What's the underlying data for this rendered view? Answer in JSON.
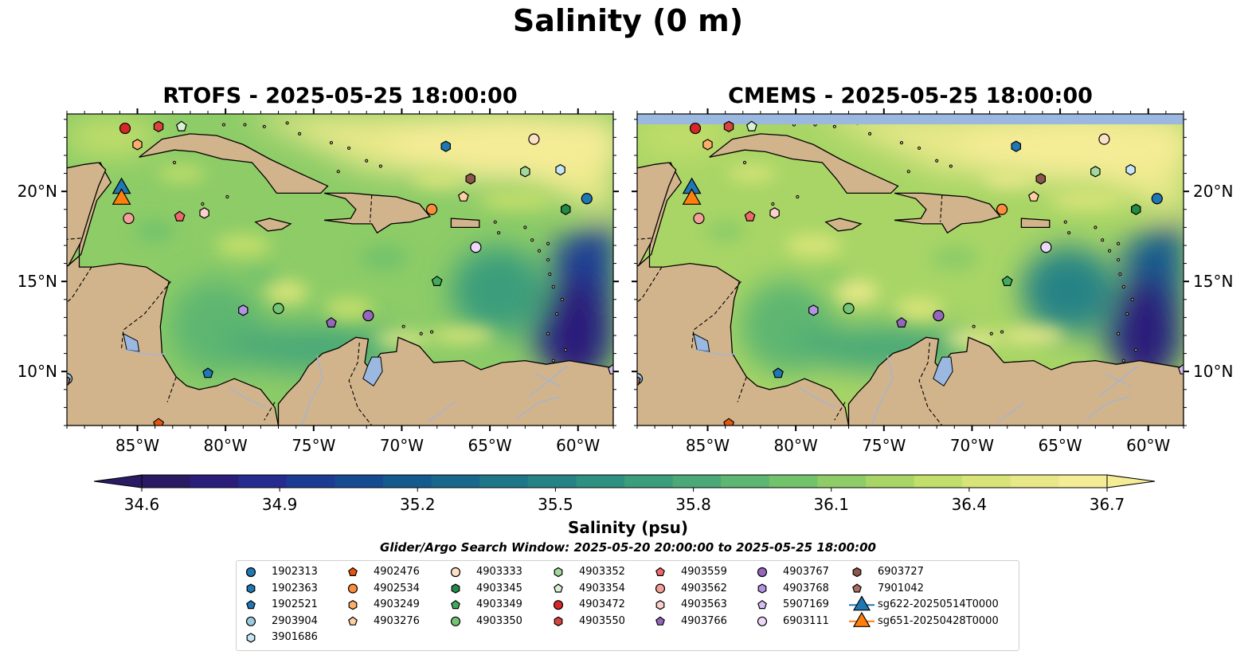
{
  "suptitle": "Salinity (0 m)",
  "panels": [
    {
      "title": "RTOFS - 2025-05-25 18:00:00",
      "model": "RTOFS"
    },
    {
      "title": "CMEMS - 2025-05-25 18:00:00",
      "model": "CMEMS"
    }
  ],
  "map": {
    "lon_range": [
      -89.0,
      -58.0
    ],
    "lat_range": [
      7.0,
      24.3
    ],
    "lon_ticks": [
      -85,
      -80,
      -75,
      -70,
      -65,
      -60
    ],
    "lon_tick_labels": [
      "85°W",
      "80°W",
      "75°W",
      "70°W",
      "65°W",
      "60°W"
    ],
    "lat_ticks": [
      10,
      15,
      20
    ],
    "lat_tick_labels": [
      "10°N",
      "15°N",
      "20°N"
    ],
    "colors": {
      "land": "#d2b48c",
      "lake": "#9ab8e0",
      "coastline": "#000000",
      "border": "#000000",
      "river": "#a6b4cc",
      "cmems_nodata_strip": "#9ab8e0"
    }
  },
  "colorbar": {
    "label": "Salinity (psu)",
    "min": 34.6,
    "max": 36.7,
    "ticks": [
      "34.6",
      "34.9",
      "35.2",
      "35.5",
      "35.8",
      "36.1",
      "36.4",
      "36.7"
    ],
    "extend": "both",
    "colormap": "haline",
    "colors": [
      "#2a1a63",
      "#2b1d7a",
      "#252b8f",
      "#1c3c94",
      "#164b92",
      "#135a8e",
      "#17688c",
      "#1e7689",
      "#268385",
      "#2e9080",
      "#3a9d7c",
      "#4aa977",
      "#5db671",
      "#73c26c",
      "#8dcc67",
      "#a8d566",
      "#c2de6b",
      "#d8e478",
      "#e8e889",
      "#f5ec96"
    ]
  },
  "search_window": "Glider/Argo Search Window: 2025-05-20 20:00:00 to 2025-05-25 18:00:00",
  "legend": {
    "columns": [
      [
        {
          "label": "1902313",
          "marker": "circle",
          "color": "#1f77b4"
        },
        {
          "label": "1902363",
          "marker": "hexagon",
          "color": "#1f77b4"
        },
        {
          "label": "1902521",
          "marker": "pentagon",
          "color": "#1f77b4"
        },
        {
          "label": "2903904",
          "marker": "circle",
          "color": "#9ecae1"
        },
        {
          "label": "3901686",
          "marker": "hexagon",
          "color": "#c6e5f7"
        }
      ],
      [
        {
          "label": "4902476",
          "marker": "pentagon",
          "color": "#e6550d"
        },
        {
          "label": "4902534",
          "marker": "circle",
          "color": "#fd8d3c"
        },
        {
          "label": "4903249",
          "marker": "hexagon",
          "color": "#fdae6b"
        },
        {
          "label": "4903276",
          "marker": "pentagon",
          "color": "#fdd0a2"
        }
      ],
      [
        {
          "label": "4903333",
          "marker": "circle",
          "color": "#fde0c8"
        },
        {
          "label": "4903345",
          "marker": "hexagon",
          "color": "#238b45"
        },
        {
          "label": "4903349",
          "marker": "pentagon",
          "color": "#41ab5d"
        },
        {
          "label": "4903350",
          "marker": "circle",
          "color": "#74c476"
        }
      ],
      [
        {
          "label": "4903352",
          "marker": "hexagon",
          "color": "#a1d99b"
        },
        {
          "label": "4903354",
          "marker": "pentagon",
          "color": "#d9f0d3"
        },
        {
          "label": "4903472",
          "marker": "circle",
          "color": "#d62728"
        },
        {
          "label": "4903550",
          "marker": "hexagon",
          "color": "#d6453d"
        }
      ],
      [
        {
          "label": "4903559",
          "marker": "pentagon",
          "color": "#f0686a"
        },
        {
          "label": "4903562",
          "marker": "circle",
          "color": "#f4a09a"
        },
        {
          "label": "4903563",
          "marker": "hexagon",
          "color": "#fcd0cc"
        },
        {
          "label": "4903766",
          "marker": "pentagon",
          "color": "#9467bd"
        }
      ],
      [
        {
          "label": "4903767",
          "marker": "circle",
          "color": "#9467bd"
        },
        {
          "label": "4903768",
          "marker": "hexagon",
          "color": "#b294e0"
        },
        {
          "label": "5907169",
          "marker": "pentagon",
          "color": "#d4bff0"
        },
        {
          "label": "6903111",
          "marker": "circle",
          "color": "#ecd9fa"
        }
      ],
      [
        {
          "label": "6903727",
          "marker": "hexagon",
          "color": "#8c564b"
        },
        {
          "label": "7901042",
          "marker": "pentagon",
          "color": "#a87062"
        },
        {
          "label": "sg622-20250514T0000",
          "marker": "triangle",
          "color": "#1f77b4"
        },
        {
          "label": "sg651-20250428T0000",
          "marker": "triangle",
          "color": "#ff7f0e"
        }
      ]
    ]
  },
  "floats": [
    {
      "id": "1902313",
      "lon": -59.5,
      "lat": 19.6
    },
    {
      "id": "1902363",
      "lon": -67.5,
      "lat": 22.5
    },
    {
      "id": "1902521",
      "lon": -81.0,
      "lat": 9.9
    },
    {
      "id": "2903904",
      "lon": -89.0,
      "lat": 9.6
    },
    {
      "id": "3901686",
      "lon": -61.0,
      "lat": 21.2
    },
    {
      "id": "4902476",
      "lon": -83.8,
      "lat": 7.1
    },
    {
      "id": "4902534",
      "lon": -68.3,
      "lat": 19.0
    },
    {
      "id": "4903249",
      "lon": -85.0,
      "lat": 22.6
    },
    {
      "id": "4903276",
      "lon": -66.5,
      "lat": 19.7
    },
    {
      "id": "4903333",
      "lon": -62.5,
      "lat": 22.9
    },
    {
      "id": "4903345",
      "lon": -60.7,
      "lat": 19.0
    },
    {
      "id": "4903349",
      "lon": -68.0,
      "lat": 15.0
    },
    {
      "id": "4903350",
      "lon": -77.0,
      "lat": 13.5
    },
    {
      "id": "4903352",
      "lon": -63.0,
      "lat": 21.1
    },
    {
      "id": "4903354",
      "lon": -82.5,
      "lat": 23.6
    },
    {
      "id": "4903472",
      "lon": -85.7,
      "lat": 23.5
    },
    {
      "id": "4903550",
      "lon": -83.8,
      "lat": 23.6
    },
    {
      "id": "4903559",
      "lon": -82.6,
      "lat": 18.6
    },
    {
      "id": "4903562",
      "lon": -85.5,
      "lat": 18.5
    },
    {
      "id": "4903563",
      "lon": -81.2,
      "lat": 18.8
    },
    {
      "id": "4903766",
      "lon": -74.0,
      "lat": 12.7
    },
    {
      "id": "4903767",
      "lon": -71.9,
      "lat": 13.1
    },
    {
      "id": "4903768",
      "lon": -79.0,
      "lat": 13.4
    },
    {
      "id": "5907169",
      "lon": -58.0,
      "lat": 10.1
    },
    {
      "id": "6903111",
      "lon": -65.8,
      "lat": 16.9
    },
    {
      "id": "6903727",
      "lon": -66.1,
      "lat": 20.7
    },
    {
      "id": "7901042",
      "lon": -89.1,
      "lat": 9.5
    }
  ],
  "gliders": [
    {
      "id": "sg622-20250514T0000",
      "lon": -85.9,
      "lat": 20.3
    },
    {
      "id": "sg651-20250428T0000",
      "lon": -85.9,
      "lat": 19.7
    }
  ]
}
